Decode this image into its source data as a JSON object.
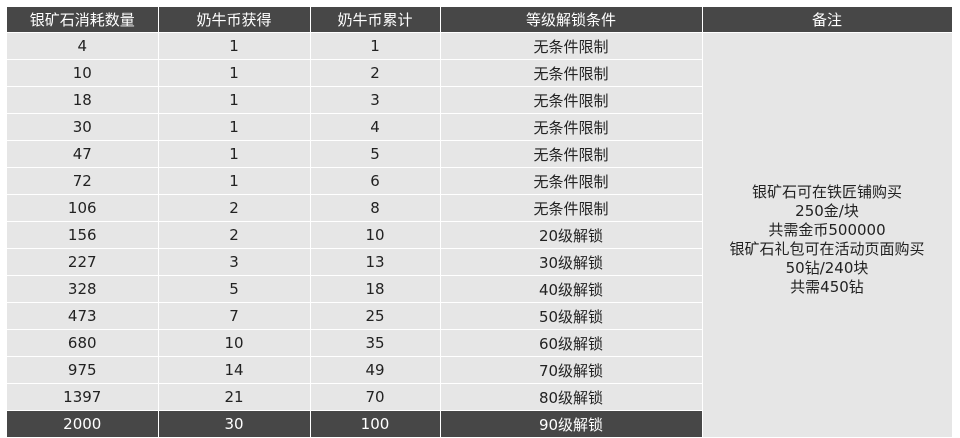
{
  "headers": [
    "银矿石消耗数量",
    "奶牛币获得",
    "奶牛币累计",
    "等级解锁条件",
    "备注"
  ],
  "rows": [
    [
      "4",
      "1",
      "1",
      "无条件限制"
    ],
    [
      "10",
      "1",
      "2",
      "无条件限制"
    ],
    [
      "18",
      "1",
      "3",
      "无条件限制"
    ],
    [
      "30",
      "1",
      "4",
      "无条件限制"
    ],
    [
      "47",
      "1",
      "5",
      "无条件限制"
    ],
    [
      "72",
      "1",
      "6",
      "无条件限制"
    ],
    [
      "106",
      "2",
      "8",
      "无条件限制"
    ],
    [
      "156",
      "2",
      "10",
      "20级解锁"
    ],
    [
      "227",
      "3",
      "13",
      "30级解锁"
    ],
    [
      "328",
      "5",
      "18",
      "40级解锁"
    ],
    [
      "473",
      "7",
      "25",
      "50级解锁"
    ],
    [
      "680",
      "10",
      "35",
      "60级解锁"
    ],
    [
      "975",
      "14",
      "49",
      "70级解锁"
    ],
    [
      "1397",
      "21",
      "70",
      "80级解锁"
    ],
    [
      "2000",
      "30",
      "100",
      "90级解锁"
    ]
  ],
  "note_lines": [
    "银矿石可在铁匠铺购买",
    "250金/块",
    "共需金币500000",
    "银矿石礼包可在活动页面购买",
    "50钻/240块",
    "共需450钻"
  ],
  "colors": {
    "header_bg": "#474747",
    "cell_bg": "#e6e6e6"
  }
}
